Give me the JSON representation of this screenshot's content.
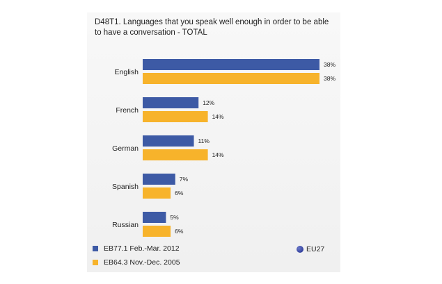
{
  "chart_data": {
    "type": "bar",
    "orientation": "horizontal",
    "title": "D48T1. Languages that you speak well enough in order to be able to have a conversation - TOTAL",
    "categories": [
      "English",
      "French",
      "German",
      "Spanish",
      "Russian"
    ],
    "series": [
      {
        "name": "EB77.1 Feb.-Mar. 2012",
        "color": "#3d5aa5",
        "values": [
          38,
          12,
          11,
          7,
          5
        ],
        "labels": [
          "38%",
          "12%",
          "11%",
          "7%",
          "5%"
        ]
      },
      {
        "name": "EB64.3 Nov.-Dec. 2005",
        "color": "#f7b32b",
        "values": [
          38,
          14,
          14,
          6,
          6
        ],
        "labels": [
          "38%",
          "14%",
          "14%",
          "6%",
          "6%"
        ]
      }
    ],
    "xlim": [
      0,
      38
    ],
    "legend_position": "bottom",
    "badge": "EU27"
  }
}
